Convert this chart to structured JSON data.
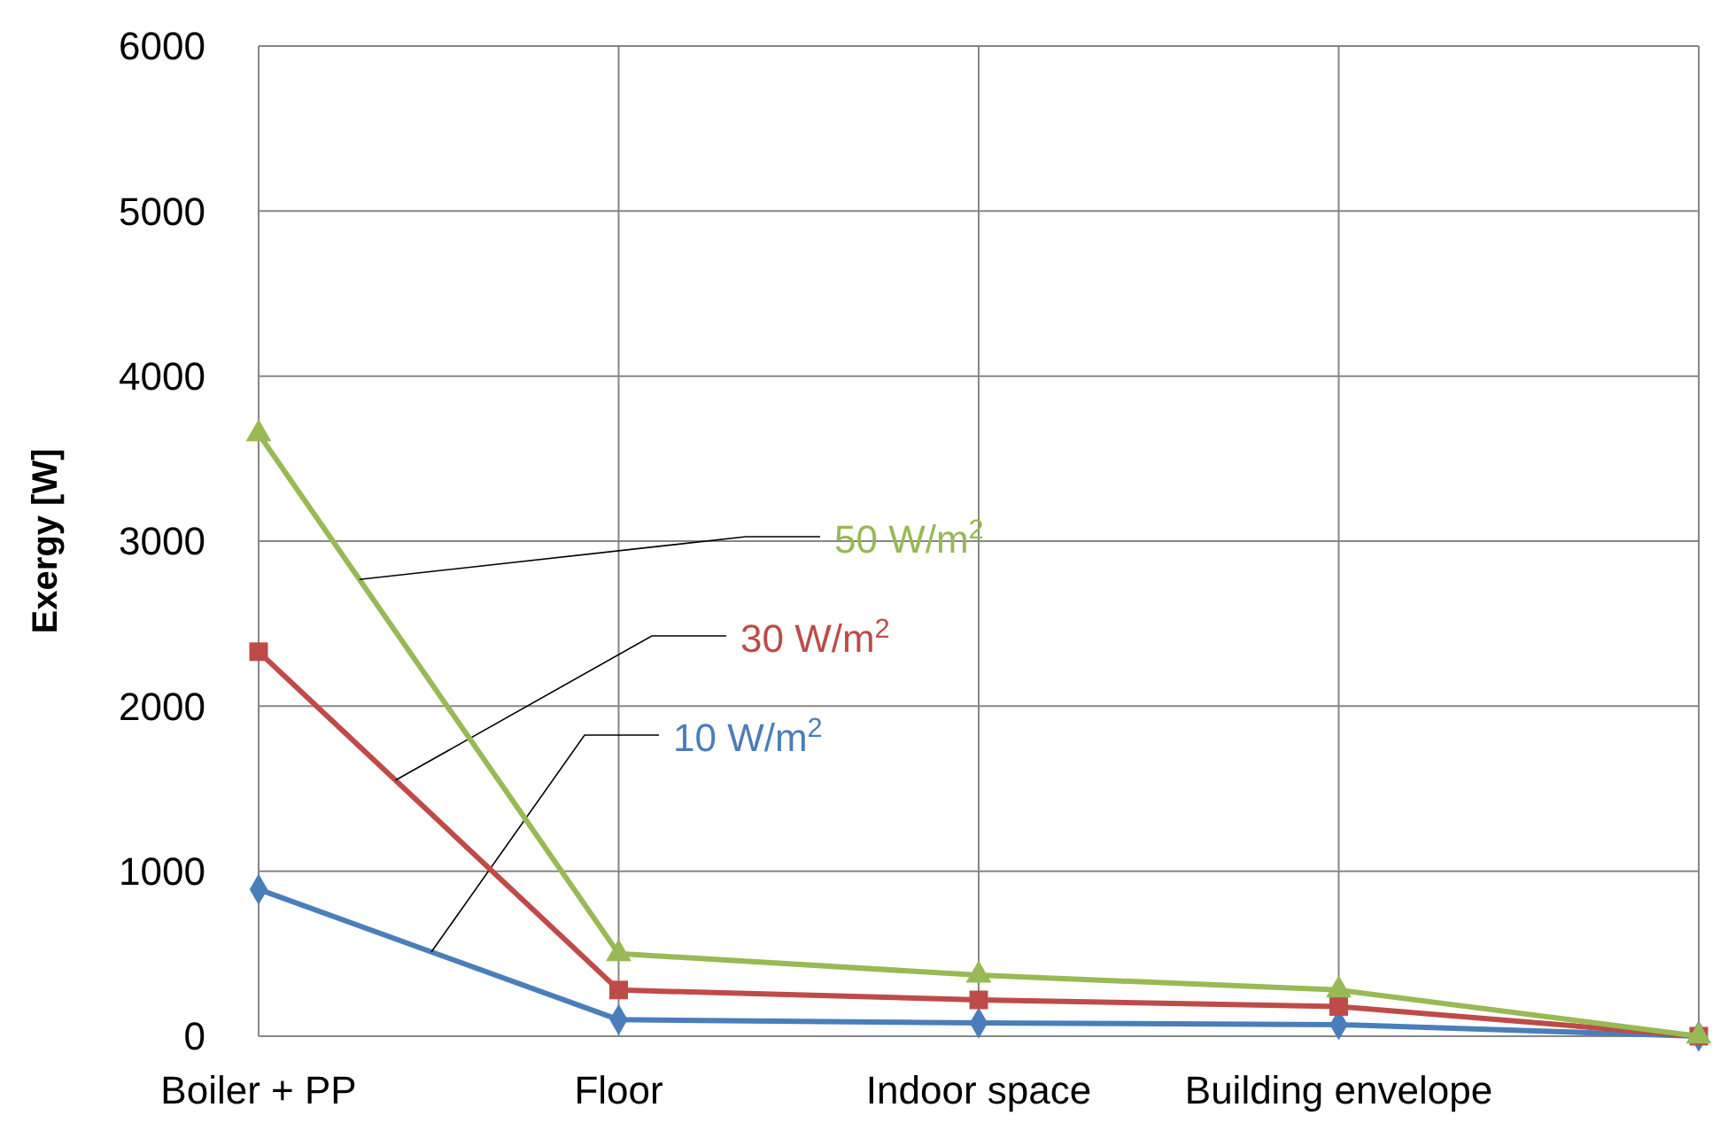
{
  "chart_data": {
    "type": "line",
    "ylabel": "Exergy [W]",
    "categories": [
      "Boiler + PP",
      "Floor",
      "Indoor space",
      "Building envelope",
      null
    ],
    "ylim": [
      0,
      6000
    ],
    "yticks": [
      0,
      1000,
      2000,
      3000,
      4000,
      5000,
      6000
    ],
    "grid": true,
    "series": [
      {
        "name": "10 W/m$^{2}$",
        "color": "#4a7ebb",
        "marker": "diamond",
        "values": [
          890,
          100,
          80,
          70,
          0
        ]
      },
      {
        "name": "30 W/m$^{2}$",
        "color": "#be4b48",
        "marker": "square",
        "values": [
          2330,
          280,
          220,
          180,
          0
        ]
      },
      {
        "name": "50 W/m$^{2}$",
        "color": "#98b954",
        "marker": "triangle",
        "values": [
          3650,
          500,
          370,
          280,
          0
        ]
      }
    ]
  }
}
